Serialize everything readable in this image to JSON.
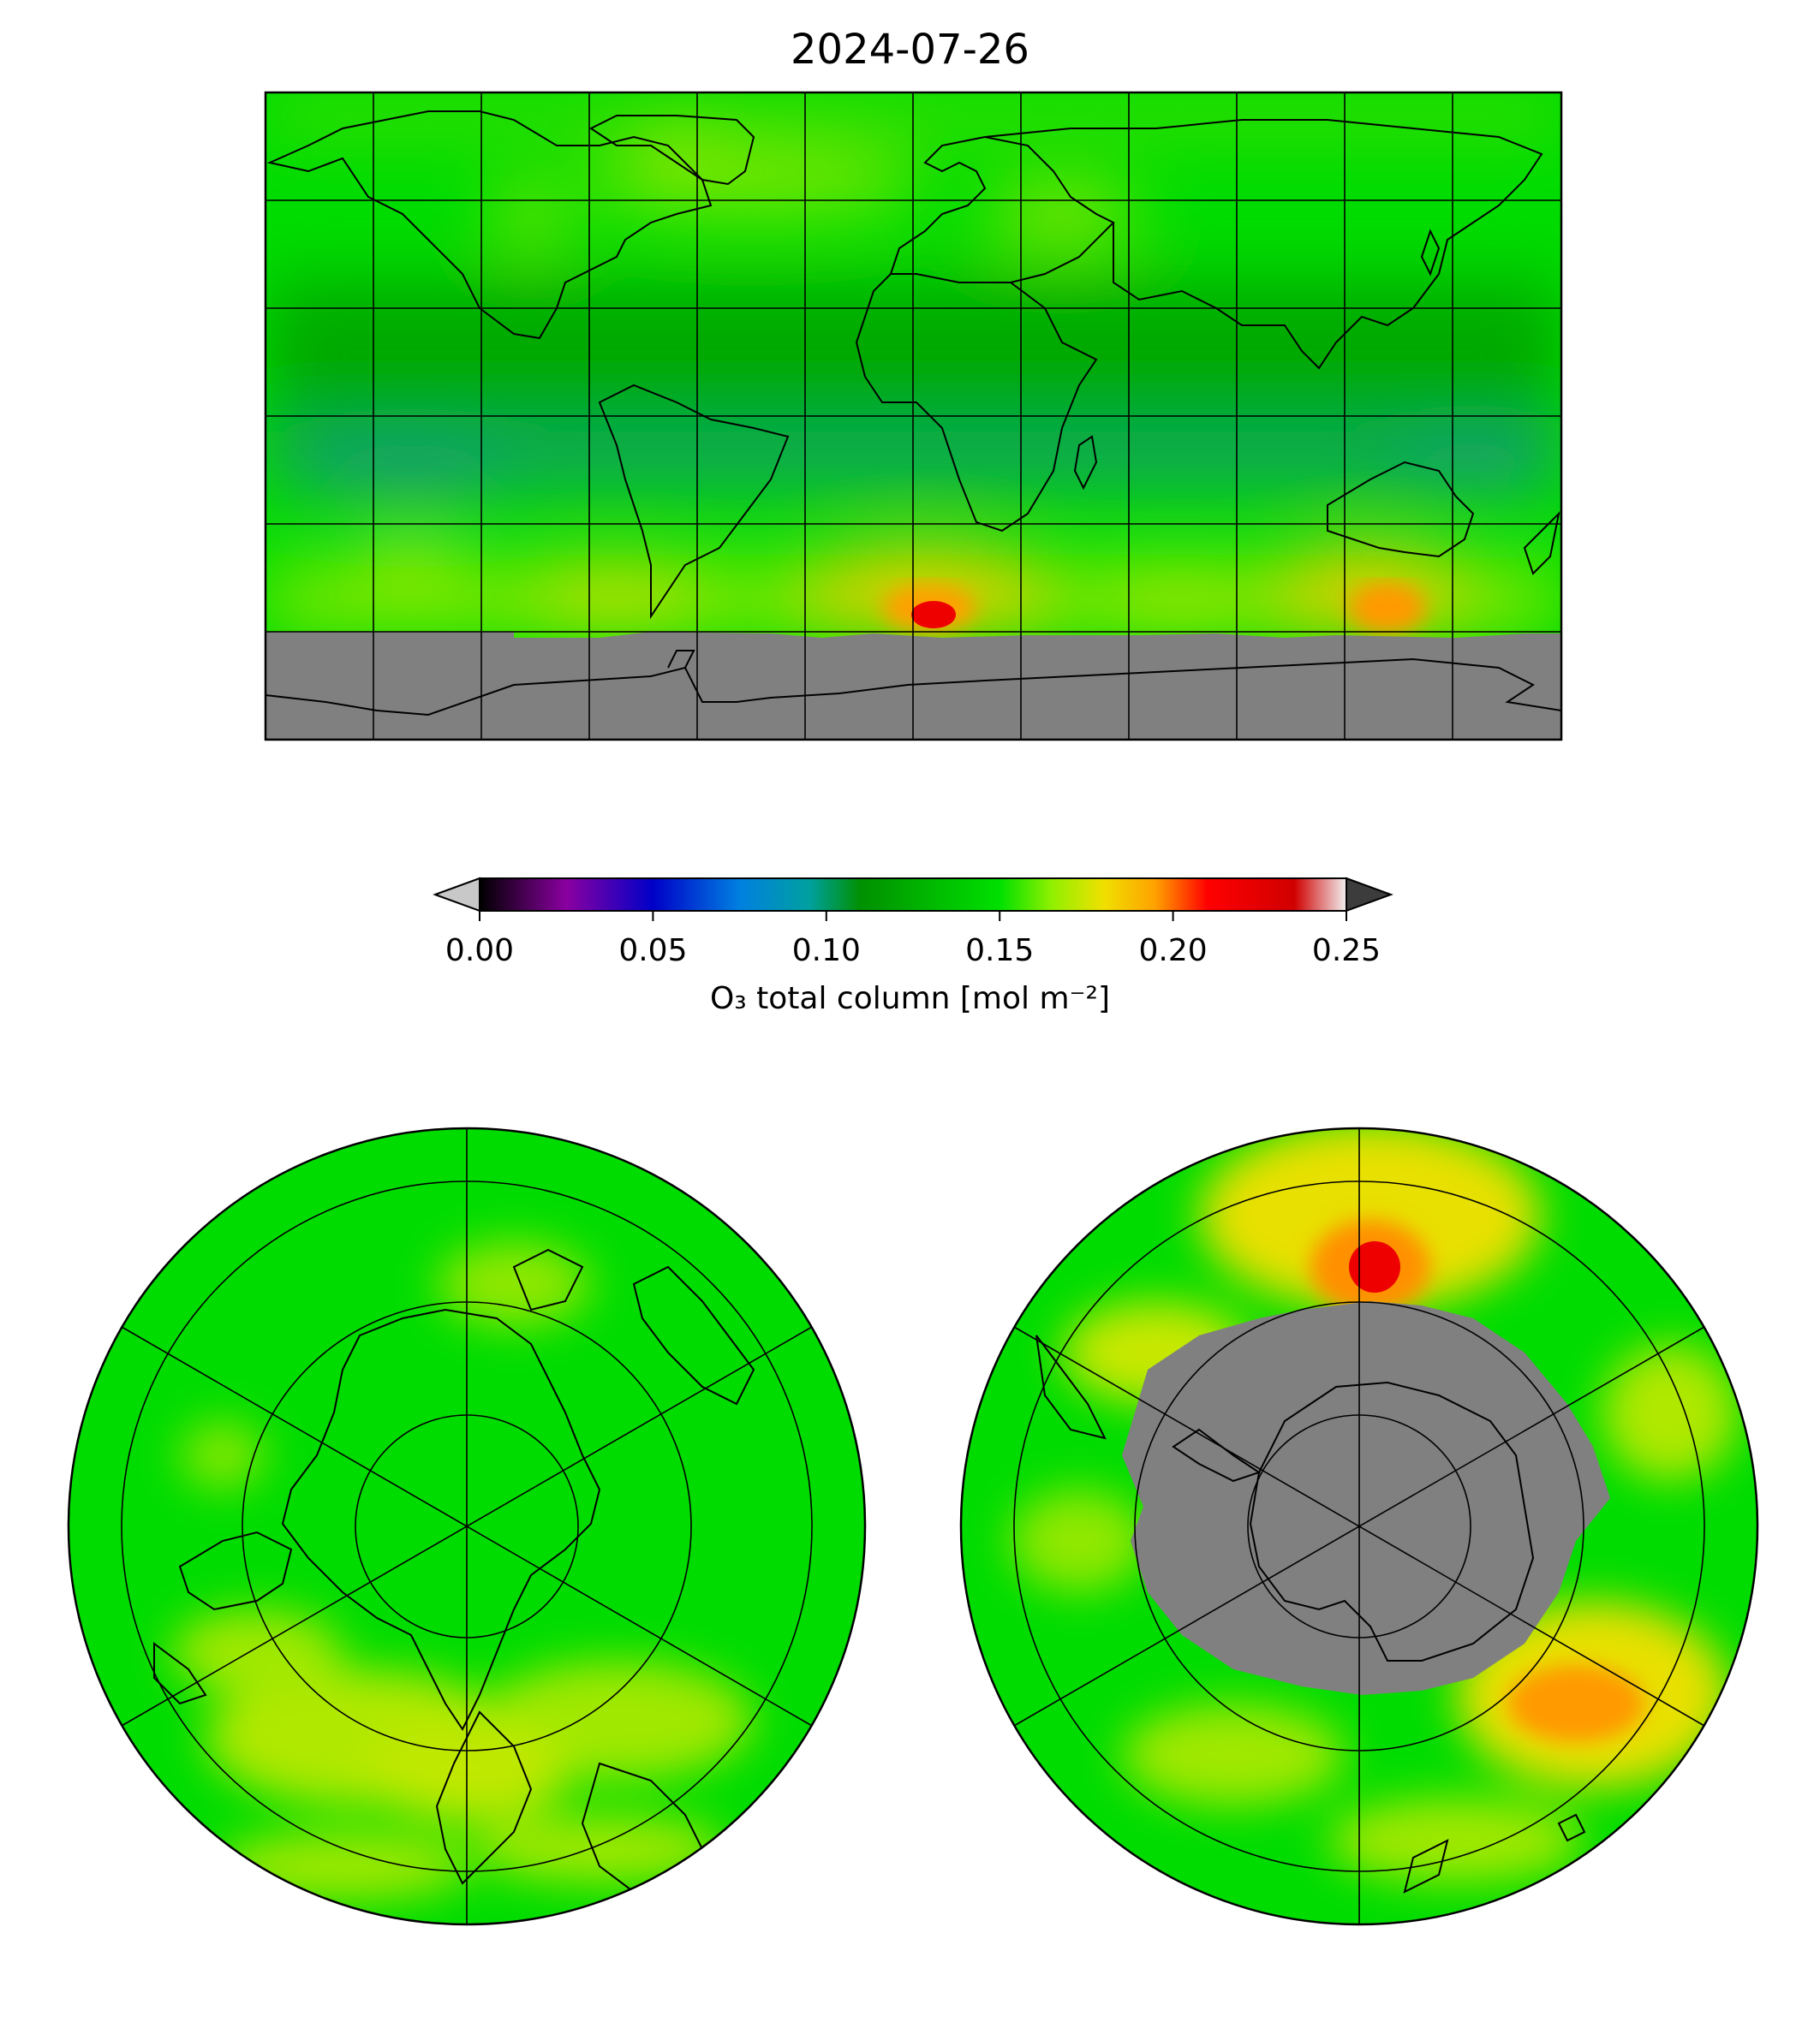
{
  "title": "2024-07-26",
  "colorbar": {
    "label": "O₃ total column [mol m⁻²]",
    "ticks": [
      "0.00",
      "0.05",
      "0.10",
      "0.15",
      "0.20",
      "0.25"
    ],
    "range": [
      0.0,
      0.25
    ],
    "extend": "both",
    "under_color": "#c8c8c8",
    "over_color": "#3c3c3c",
    "stops": [
      {
        "value": 0.0,
        "color": "#000000"
      },
      {
        "value": 0.025,
        "color": "#8a00a0"
      },
      {
        "value": 0.05,
        "color": "#0000c8"
      },
      {
        "value": 0.075,
        "color": "#0080e0"
      },
      {
        "value": 0.095,
        "color": "#00a0a0"
      },
      {
        "value": 0.11,
        "color": "#009000"
      },
      {
        "value": 0.15,
        "color": "#00e000"
      },
      {
        "value": 0.165,
        "color": "#90f000"
      },
      {
        "value": 0.18,
        "color": "#f0e000"
      },
      {
        "value": 0.195,
        "color": "#ffa000"
      },
      {
        "value": 0.21,
        "color": "#ff0000"
      },
      {
        "value": 0.235,
        "color": "#d00000"
      },
      {
        "value": 0.25,
        "color": "#f0f0f0"
      }
    ]
  },
  "colors": {
    "no_data": "#808080",
    "background_field": "#00dd00",
    "tropics_field": "#00a000",
    "equatorial_band": "#20a080",
    "high_ozone": "#f0e000",
    "peak_ozone": "#ff0000"
  },
  "panels": [
    {
      "name": "global",
      "projection": "equirectangular",
      "graticule_spacing_deg": 30
    },
    {
      "name": "north-pole",
      "projection": "north polar stereographic"
    },
    {
      "name": "south-pole",
      "projection": "south polar stereographic"
    }
  ]
}
